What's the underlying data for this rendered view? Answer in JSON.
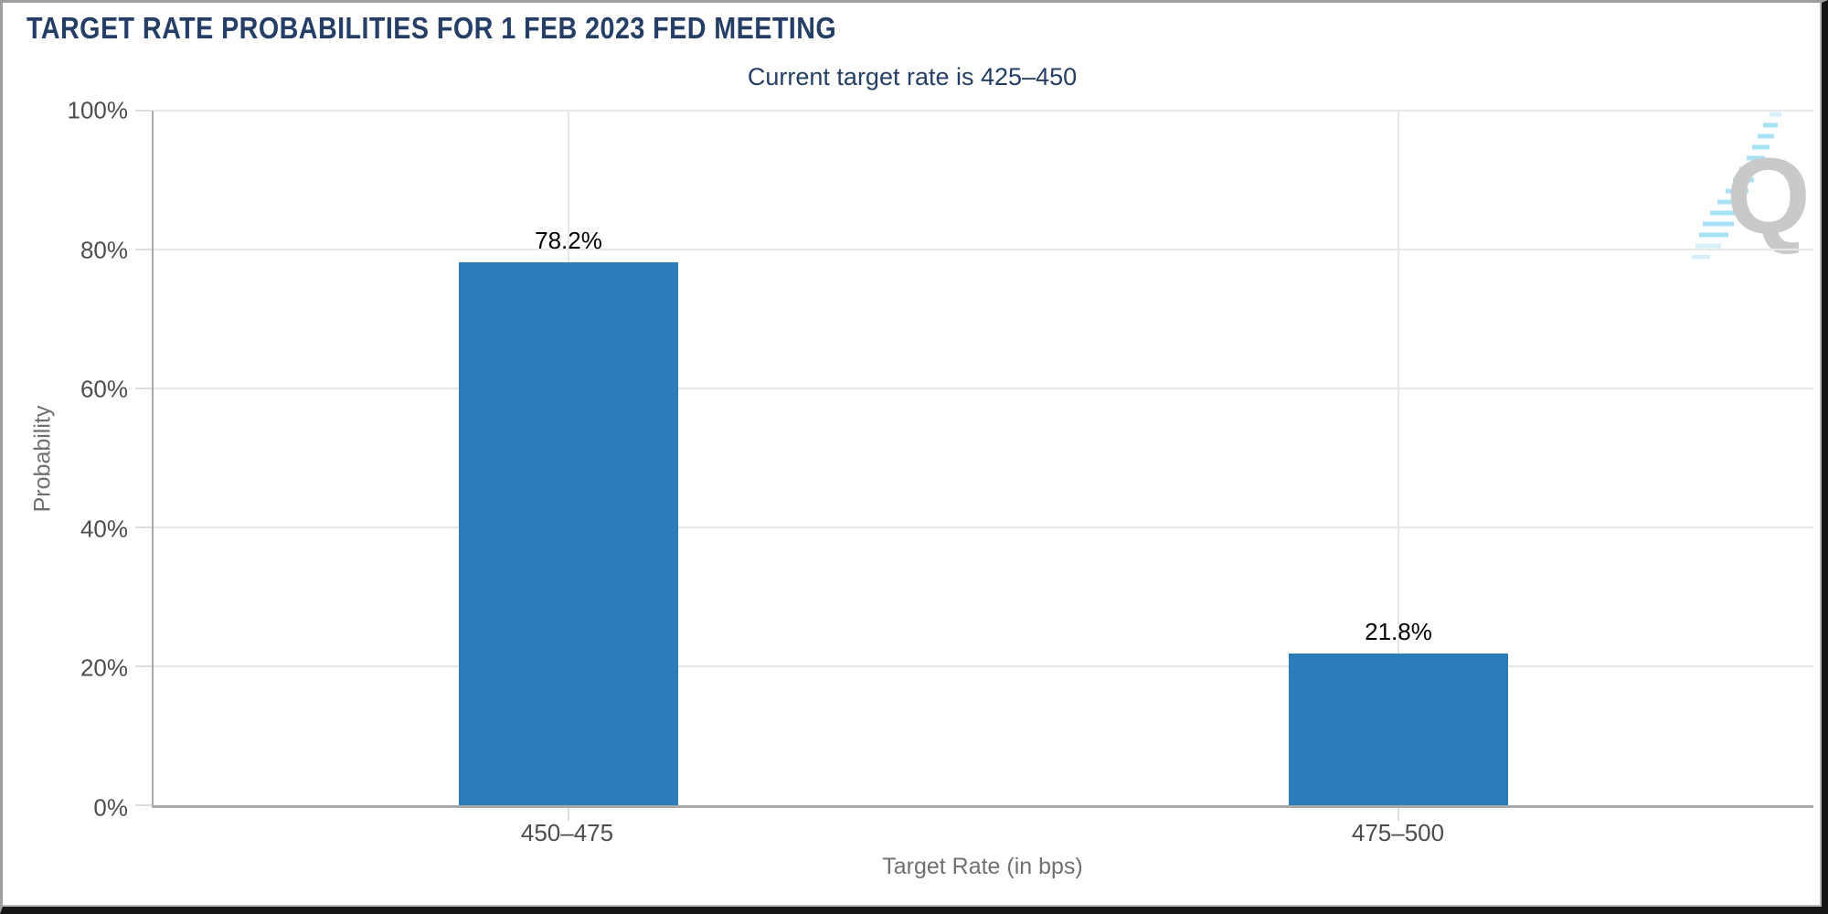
{
  "chart_data": {
    "type": "bar",
    "title": "TARGET RATE PROBABILITIES FOR 1 FEB 2023 FED MEETING",
    "subtitle": "Current target rate is 425–450",
    "categories": [
      "450–475",
      "475–500"
    ],
    "values": [
      78.2,
      21.8
    ],
    "value_labels": [
      "78.2%",
      "21.8%"
    ],
    "xlabel": "Target Rate (in bps)",
    "ylabel": "Probability",
    "ylim": [
      0,
      100
    ],
    "yticks": [
      {
        "value": 0,
        "label": "0%"
      },
      {
        "value": 20,
        "label": "20%"
      },
      {
        "value": 40,
        "label": "40%"
      },
      {
        "value": 60,
        "label": "60%"
      },
      {
        "value": 80,
        "label": "80%"
      },
      {
        "value": 100,
        "label": "100%"
      }
    ],
    "legend": "none",
    "grid": "horizontal at every 20% plus vertical line at each category center",
    "colors": {
      "bar": "#2a7db9",
      "title": "#253e66",
      "tick_label": "#4d4d4d",
      "axis_title": "#707070",
      "data_label": "#000000",
      "gridline": "#e7e7e7",
      "tick": "#dcdcdc",
      "axis_line": "#a9a9a9"
    }
  },
  "watermark": {
    "icon": "q-logo-watermark",
    "letter": "Q",
    "letter_color": "#c9c9c9",
    "swoosh_color": "#a8e0f6"
  }
}
